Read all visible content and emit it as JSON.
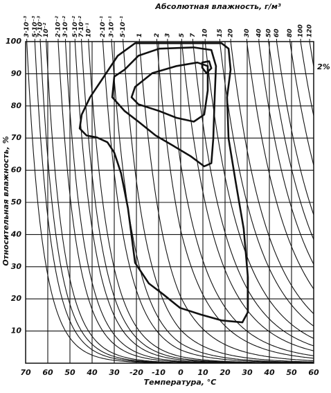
{
  "chart_data": {
    "type": "contour",
    "title": "Абсолютная влажность, г/м³",
    "xlabel": "Температура, °С",
    "ylabel": "Относительная влажность, %",
    "annotation": "2%",
    "xlim": [
      -70,
      60
    ],
    "ylim": [
      0,
      100
    ],
    "xticks": [
      {
        "value": -70,
        "label": "70"
      },
      {
        "value": -60,
        "label": "60"
      },
      {
        "value": -50,
        "label": "50"
      },
      {
        "value": -40,
        "label": "40"
      },
      {
        "value": -30,
        "label": "30"
      },
      -20,
      -10,
      0,
      10,
      20,
      30,
      40,
      50,
      60
    ],
    "yticks": [
      10,
      20,
      30,
      40,
      50,
      60,
      70,
      80,
      90,
      100
    ],
    "x2ticks": [
      {
        "value": 0.003,
        "label": "3·10⁻³"
      },
      {
        "value": 0.005,
        "label": "5·10⁻³"
      },
      {
        "value": 0.007,
        "label": "7·10⁻³"
      },
      {
        "value": 0.01,
        "label": "10⁻²"
      },
      {
        "value": 0.02,
        "label": "2·10⁻²"
      },
      {
        "value": 0.03,
        "label": "3·10⁻²"
      },
      {
        "value": 0.05,
        "label": "5·10⁻²"
      },
      {
        "value": 0.07,
        "label": "7·10⁻²"
      },
      {
        "value": 0.1,
        "label": "10⁻¹"
      },
      {
        "value": 0.2,
        "label": "2·10⁻¹"
      },
      {
        "value": 0.3,
        "label": "3·10⁻¹"
      },
      {
        "value": 0.5,
        "label": "5·10⁻¹"
      },
      1,
      2,
      3,
      5,
      7,
      10,
      15,
      20,
      30,
      40,
      50,
      60,
      80,
      100,
      120
    ],
    "grid": true,
    "color": "#111111",
    "contours": [
      {
        "x": [
          -20.6,
          18.4,
          21.6,
          22.5,
          20.9,
          21.6,
          24.7,
          28.4,
          30.3,
          30.3,
          27.8,
          18.4,
          9.1,
          -0.3,
          -8.1,
          -14.4,
          -20.6,
          -22.2,
          -23.8,
          -26.9,
          -30,
          -33.1,
          -37.8,
          -42.5,
          -45.6,
          -44.7,
          -40.9,
          -34.7,
          -28.4
        ],
        "y": [
          99.5,
          99.5,
          97.8,
          91.3,
          82.7,
          69.8,
          56.8,
          41.8,
          26.7,
          15.9,
          12.7,
          13.3,
          15.1,
          17.2,
          21.5,
          24.8,
          31.2,
          39.6,
          48.2,
          59,
          65.5,
          68.7,
          70.2,
          70.8,
          73,
          77.3,
          82.7,
          89.1,
          95.6
        ]
      },
      {
        "x": [
          -25.3,
          -19.1,
          -9.7,
          5.9,
          13.8,
          15.9,
          15.3,
          14.7,
          13.8,
          10.6,
          4.4,
          -3.4,
          -11.3,
          -19.1,
          -25.3,
          -30.9,
          -30
        ],
        "y": [
          91.3,
          95.6,
          97.8,
          98.2,
          97.4,
          92.4,
          82.7,
          69.8,
          62.2,
          61.2,
          64.4,
          67.6,
          70.8,
          75.1,
          78.4,
          82.7,
          89.1
        ]
      },
      {
        "x": [
          -20.6,
          -12.8,
          -1.9,
          7.5,
          12.2,
          12.2,
          10.6,
          5.9,
          -1.9,
          -9.7,
          -19.1,
          -22.2
        ],
        "y": [
          85.9,
          90.2,
          92.4,
          93.5,
          92.4,
          84.8,
          77.3,
          75.1,
          76.3,
          78.4,
          80.5,
          82.7
        ]
      },
      {
        "x": [
          9.7,
          12.8,
          13.8,
          11.6,
          9.7
        ],
        "y": [
          93.5,
          93.9,
          91.7,
          90.2,
          91.9
        ]
      }
    ]
  }
}
